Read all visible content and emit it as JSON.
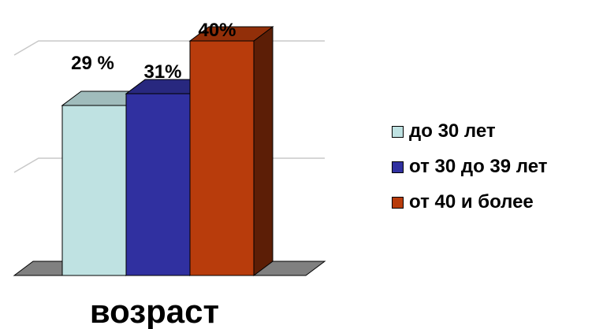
{
  "chart_data": {
    "type": "bar",
    "categories": [
      "до 30 лет",
      "от 30 до 39 лет",
      "от 40 и более"
    ],
    "values": [
      29,
      31,
      40
    ],
    "data_labels": [
      "29 %",
      "31%",
      "40%"
    ],
    "xlabel": "возраст",
    "ylabel": "",
    "ylim": [
      0,
      40
    ],
    "grid": true,
    "legend": "right",
    "three_d": true,
    "colors": [
      "#bfe2e2",
      "#3030a0",
      "#b83c0c"
    ],
    "side_colors": [
      "#7f9f9f",
      "#1a1a5e",
      "#5c1e06"
    ],
    "top_colors": [
      "#a0bcbc",
      "#28287f",
      "#922f09"
    ],
    "floor_color": "#808080"
  }
}
